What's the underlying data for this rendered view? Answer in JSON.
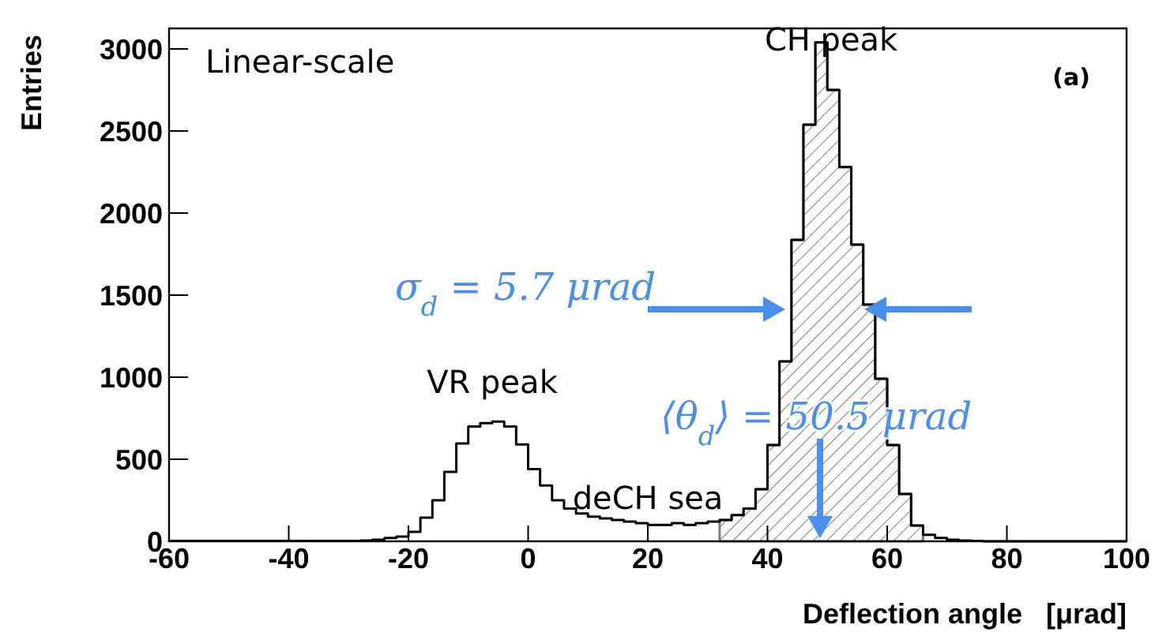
{
  "chart_data": {
    "type": "histogram",
    "xlabel": "Deflection angle   [μrad]",
    "ylabel": "Entries",
    "bins": [
      -60,
      -58,
      -56,
      -54,
      -52,
      -50,
      -48,
      -46,
      -44,
      -42,
      -40,
      -38,
      -36,
      -34,
      -32,
      -30,
      -28,
      -26,
      -24,
      -22,
      -20,
      -18,
      -16,
      -14,
      -12,
      -10,
      -8,
      -6,
      -4,
      -2,
      0,
      2,
      4,
      6,
      8,
      10,
      12,
      14,
      16,
      18,
      20,
      22,
      24,
      26,
      28,
      30,
      32,
      34,
      36,
      38,
      40,
      42,
      44,
      46,
      48,
      50,
      52,
      54,
      56,
      58,
      60,
      62,
      64,
      66,
      68,
      70,
      72,
      74,
      76,
      78,
      80,
      82,
      84,
      86,
      88,
      90,
      92,
      94,
      96,
      98,
      100
    ],
    "series": [
      {
        "color": "#000000",
        "values": [
          3,
          3,
          3,
          3,
          3,
          3,
          3,
          3,
          3,
          3,
          3,
          3,
          3,
          3,
          3,
          3,
          5,
          10,
          20,
          29,
          58,
          144,
          250,
          423,
          596,
          700,
          720,
          730,
          700,
          590,
          440,
          340,
          250,
          200,
          170,
          150,
          140,
          130,
          120,
          110,
          100,
          100,
          110,
          100,
          110,
          120,
          130,
          160,
          200,
          317,
          587,
          1096,
          1837,
          2538,
          3040,
          2750,
          2280,
          1808,
          1442,
          990,
          587,
          288,
          96,
          40,
          20,
          10,
          5,
          3,
          0,
          0,
          0,
          0,
          0,
          0,
          0,
          0,
          0,
          0,
          0,
          0
        ]
      },
      {
        "color": "#808080",
        "bins": [
          32,
          34,
          36,
          38,
          40,
          42,
          44,
          46,
          48,
          50,
          52,
          54,
          56,
          58,
          60,
          62,
          64,
          66
        ],
        "values": [
          130,
          160,
          200,
          317,
          587,
          1096,
          1837,
          2538,
          3040,
          2750,
          2280,
          1808,
          1442,
          990,
          587,
          288,
          96
        ]
      }
    ],
    "xlim": [
      -60,
      100
    ],
    "xticks": [
      -60,
      -40,
      -20,
      0,
      20,
      40,
      60,
      80,
      100
    ],
    "ylim": [
      0,
      3125
    ],
    "yticks": [
      0,
      500,
      1000,
      1500,
      2000,
      2500,
      3000
    ],
    "grid": false,
    "legend": false,
    "annotations": [
      "Linear-scale",
      "(a)",
      "σ$_{d}$ = 5.7 μrad",
      "⟨θ$_{d}$⟩ = 50.5 μrad",
      {
        "text": "CH peak",
        "x": 48,
        "y": 3040
      },
      {
        "text": "VR peak",
        "x": -6,
        "y": 730
      },
      {
        "text": "deCH sea",
        "x": 20,
        "y": 100
      }
    ]
  }
}
